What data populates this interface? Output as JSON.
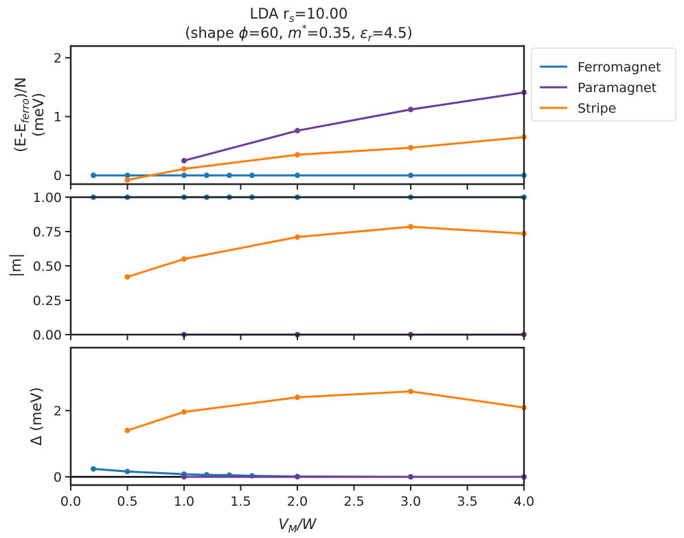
{
  "title": {
    "line1": "LDA r",
    "line1_sub": "s",
    "line1_value": "=10.00",
    "line2_pre": "(shape ",
    "line2_phi": "ϕ",
    "line2_phi_val": "=60, ",
    "line2_m": "m",
    "line2_m_sup": "*",
    "line2_m_val": "=0.35, ",
    "line2_eps": "ε",
    "line2_eps_sub": "r",
    "line2_eps_val": "=4.5)"
  },
  "xlabel": {
    "main": "V",
    "sub": "M",
    "tail": "/W"
  },
  "colors": {
    "Ferromagnet": "#1f77b4",
    "Paramagnet": "#6a3d9a",
    "Stripe": "#ff7f0e",
    "axis": "#222222",
    "zero_line": "#000000"
  },
  "chart_data": [
    {
      "type": "line",
      "panel": "energy",
      "ylabel_line1_pre": "(E-E",
      "ylabel_line1_sub": "ferro",
      "ylabel_line1_post": ")/N",
      "ylabel_line2": "(meV)",
      "xlim": [
        0,
        4
      ],
      "ylim": [
        -0.15,
        2.2
      ],
      "yticks": [
        0,
        1,
        2
      ],
      "ytick_labels": [
        "0",
        "1",
        "2"
      ],
      "series": [
        {
          "name": "Ferromagnet",
          "x": [
            0.2,
            0.5,
            1.0,
            1.2,
            1.4,
            1.6,
            2.0,
            3.0,
            4.0
          ],
          "y": [
            0,
            0,
            0,
            0,
            0,
            0,
            0,
            0,
            0
          ]
        },
        {
          "name": "Paramagnet",
          "x": [
            1.0,
            2.0,
            3.0,
            4.0
          ],
          "y": [
            0.25,
            0.76,
            1.12,
            1.41
          ]
        },
        {
          "name": "Stripe",
          "x": [
            0.5,
            1.0,
            2.0,
            3.0,
            4.0
          ],
          "y": [
            -0.08,
            0.11,
            0.35,
            0.47,
            0.65
          ]
        }
      ]
    },
    {
      "type": "line",
      "panel": "magnetization",
      "ylabel": "|m|",
      "xlim": [
        0,
        4
      ],
      "ylim": [
        0,
        1.0
      ],
      "yticks": [
        0,
        0.25,
        0.5,
        0.75,
        1.0
      ],
      "ytick_labels": [
        "0.00",
        "0.25",
        "0.50",
        "0.75",
        "1.00"
      ],
      "series": [
        {
          "name": "Ferromagnet",
          "x": [
            0.2,
            0.5,
            1.0,
            1.2,
            1.4,
            1.6,
            2.0,
            3.0,
            4.0
          ],
          "y": [
            1,
            1,
            1,
            1,
            1,
            1,
            1,
            1,
            1
          ]
        },
        {
          "name": "Paramagnet",
          "x": [
            1.0,
            2.0,
            3.0,
            4.0
          ],
          "y": [
            0,
            0,
            0,
            0
          ]
        },
        {
          "name": "Stripe",
          "x": [
            0.5,
            1.0,
            2.0,
            3.0,
            4.0
          ],
          "y": [
            0.42,
            0.55,
            0.71,
            0.785,
            0.735
          ]
        }
      ]
    },
    {
      "type": "line",
      "panel": "gap",
      "ylabel": "Δ (meV)",
      "xlim": [
        0,
        4
      ],
      "ylim": [
        -0.25,
        3.9
      ],
      "yticks": [
        0,
        2
      ],
      "ytick_labels": [
        "0",
        "2"
      ],
      "xticks": [
        0,
        0.5,
        1,
        1.5,
        2,
        2.5,
        3,
        3.5,
        4
      ],
      "xtick_labels": [
        "0.0",
        "0.5",
        "1.0",
        "1.5",
        "2.0",
        "2.5",
        "3.0",
        "3.5",
        "4.0"
      ],
      "zero_line": true,
      "series": [
        {
          "name": "Ferromagnet",
          "x": [
            0.2,
            0.5,
            1.0,
            1.2,
            1.4,
            1.6,
            2.0,
            3.0,
            4.0
          ],
          "y": [
            0.24,
            0.16,
            0.08,
            0.06,
            0.05,
            0.03,
            0.01,
            0.0,
            0.0
          ]
        },
        {
          "name": "Paramagnet",
          "x": [
            1.0,
            2.0,
            3.0,
            4.0
          ],
          "y": [
            0,
            0,
            0,
            0
          ]
        },
        {
          "name": "Stripe",
          "x": [
            0.5,
            1.0,
            2.0,
            3.0,
            4.0
          ],
          "y": [
            1.4,
            1.96,
            2.4,
            2.58,
            2.09
          ]
        }
      ]
    }
  ],
  "legend": {
    "position": "upper-right-outside",
    "entries": [
      "Ferromagnet",
      "Paramagnet",
      "Stripe"
    ]
  }
}
